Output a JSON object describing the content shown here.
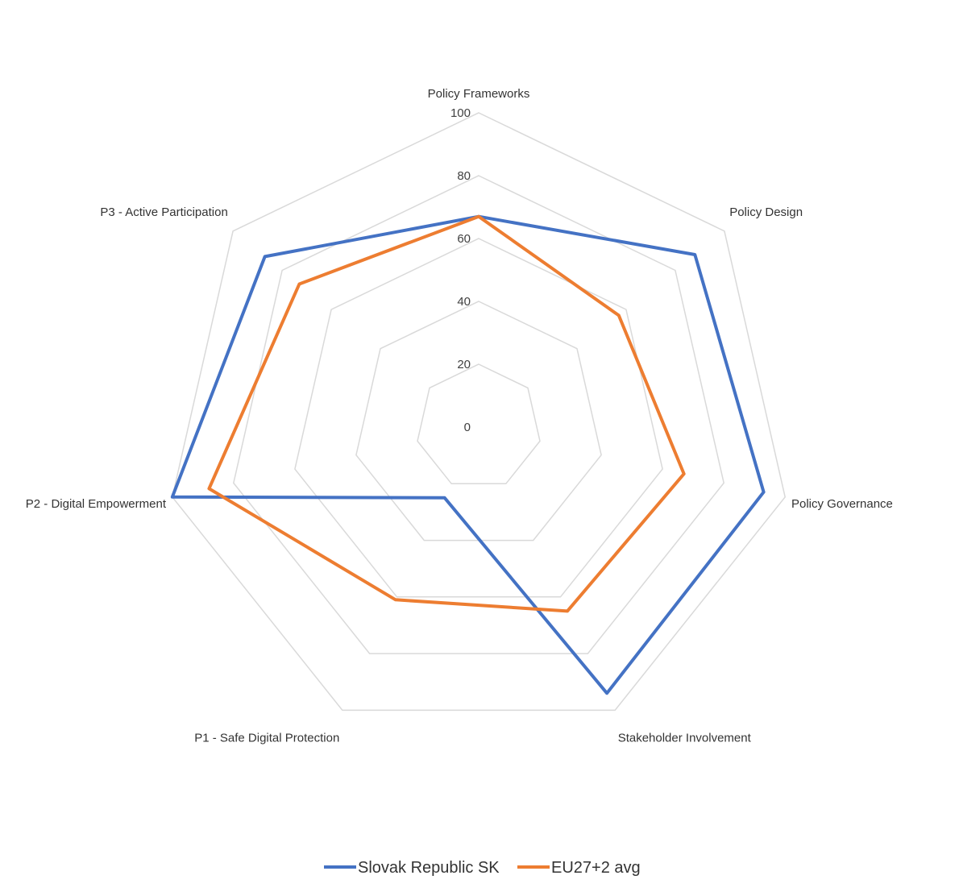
{
  "chart_data": {
    "type": "radar",
    "categories": [
      "Policy Frameworks",
      "Policy Design",
      "Policy Governance",
      "Stakeholder Involvement",
      "P1 - Safe Digital Protection",
      "P2 - Digital Empowerment",
      "P3 - Active Participation"
    ],
    "radial_ticks": [
      0,
      20,
      40,
      60,
      80,
      100
    ],
    "rlim": [
      0,
      100
    ],
    "series": [
      {
        "name": "Slovak Republic SK",
        "color": "#4472C4",
        "values": [
          67,
          88,
          93,
          94,
          25,
          100,
          87
        ]
      },
      {
        "name": "EU27+2 avg",
        "color": "#ED7D31",
        "values": [
          67,
          57,
          67,
          65,
          61,
          88,
          73
        ]
      }
    ],
    "grid": true,
    "grid_color": "#d9d9d9",
    "legend_position": "bottom"
  }
}
